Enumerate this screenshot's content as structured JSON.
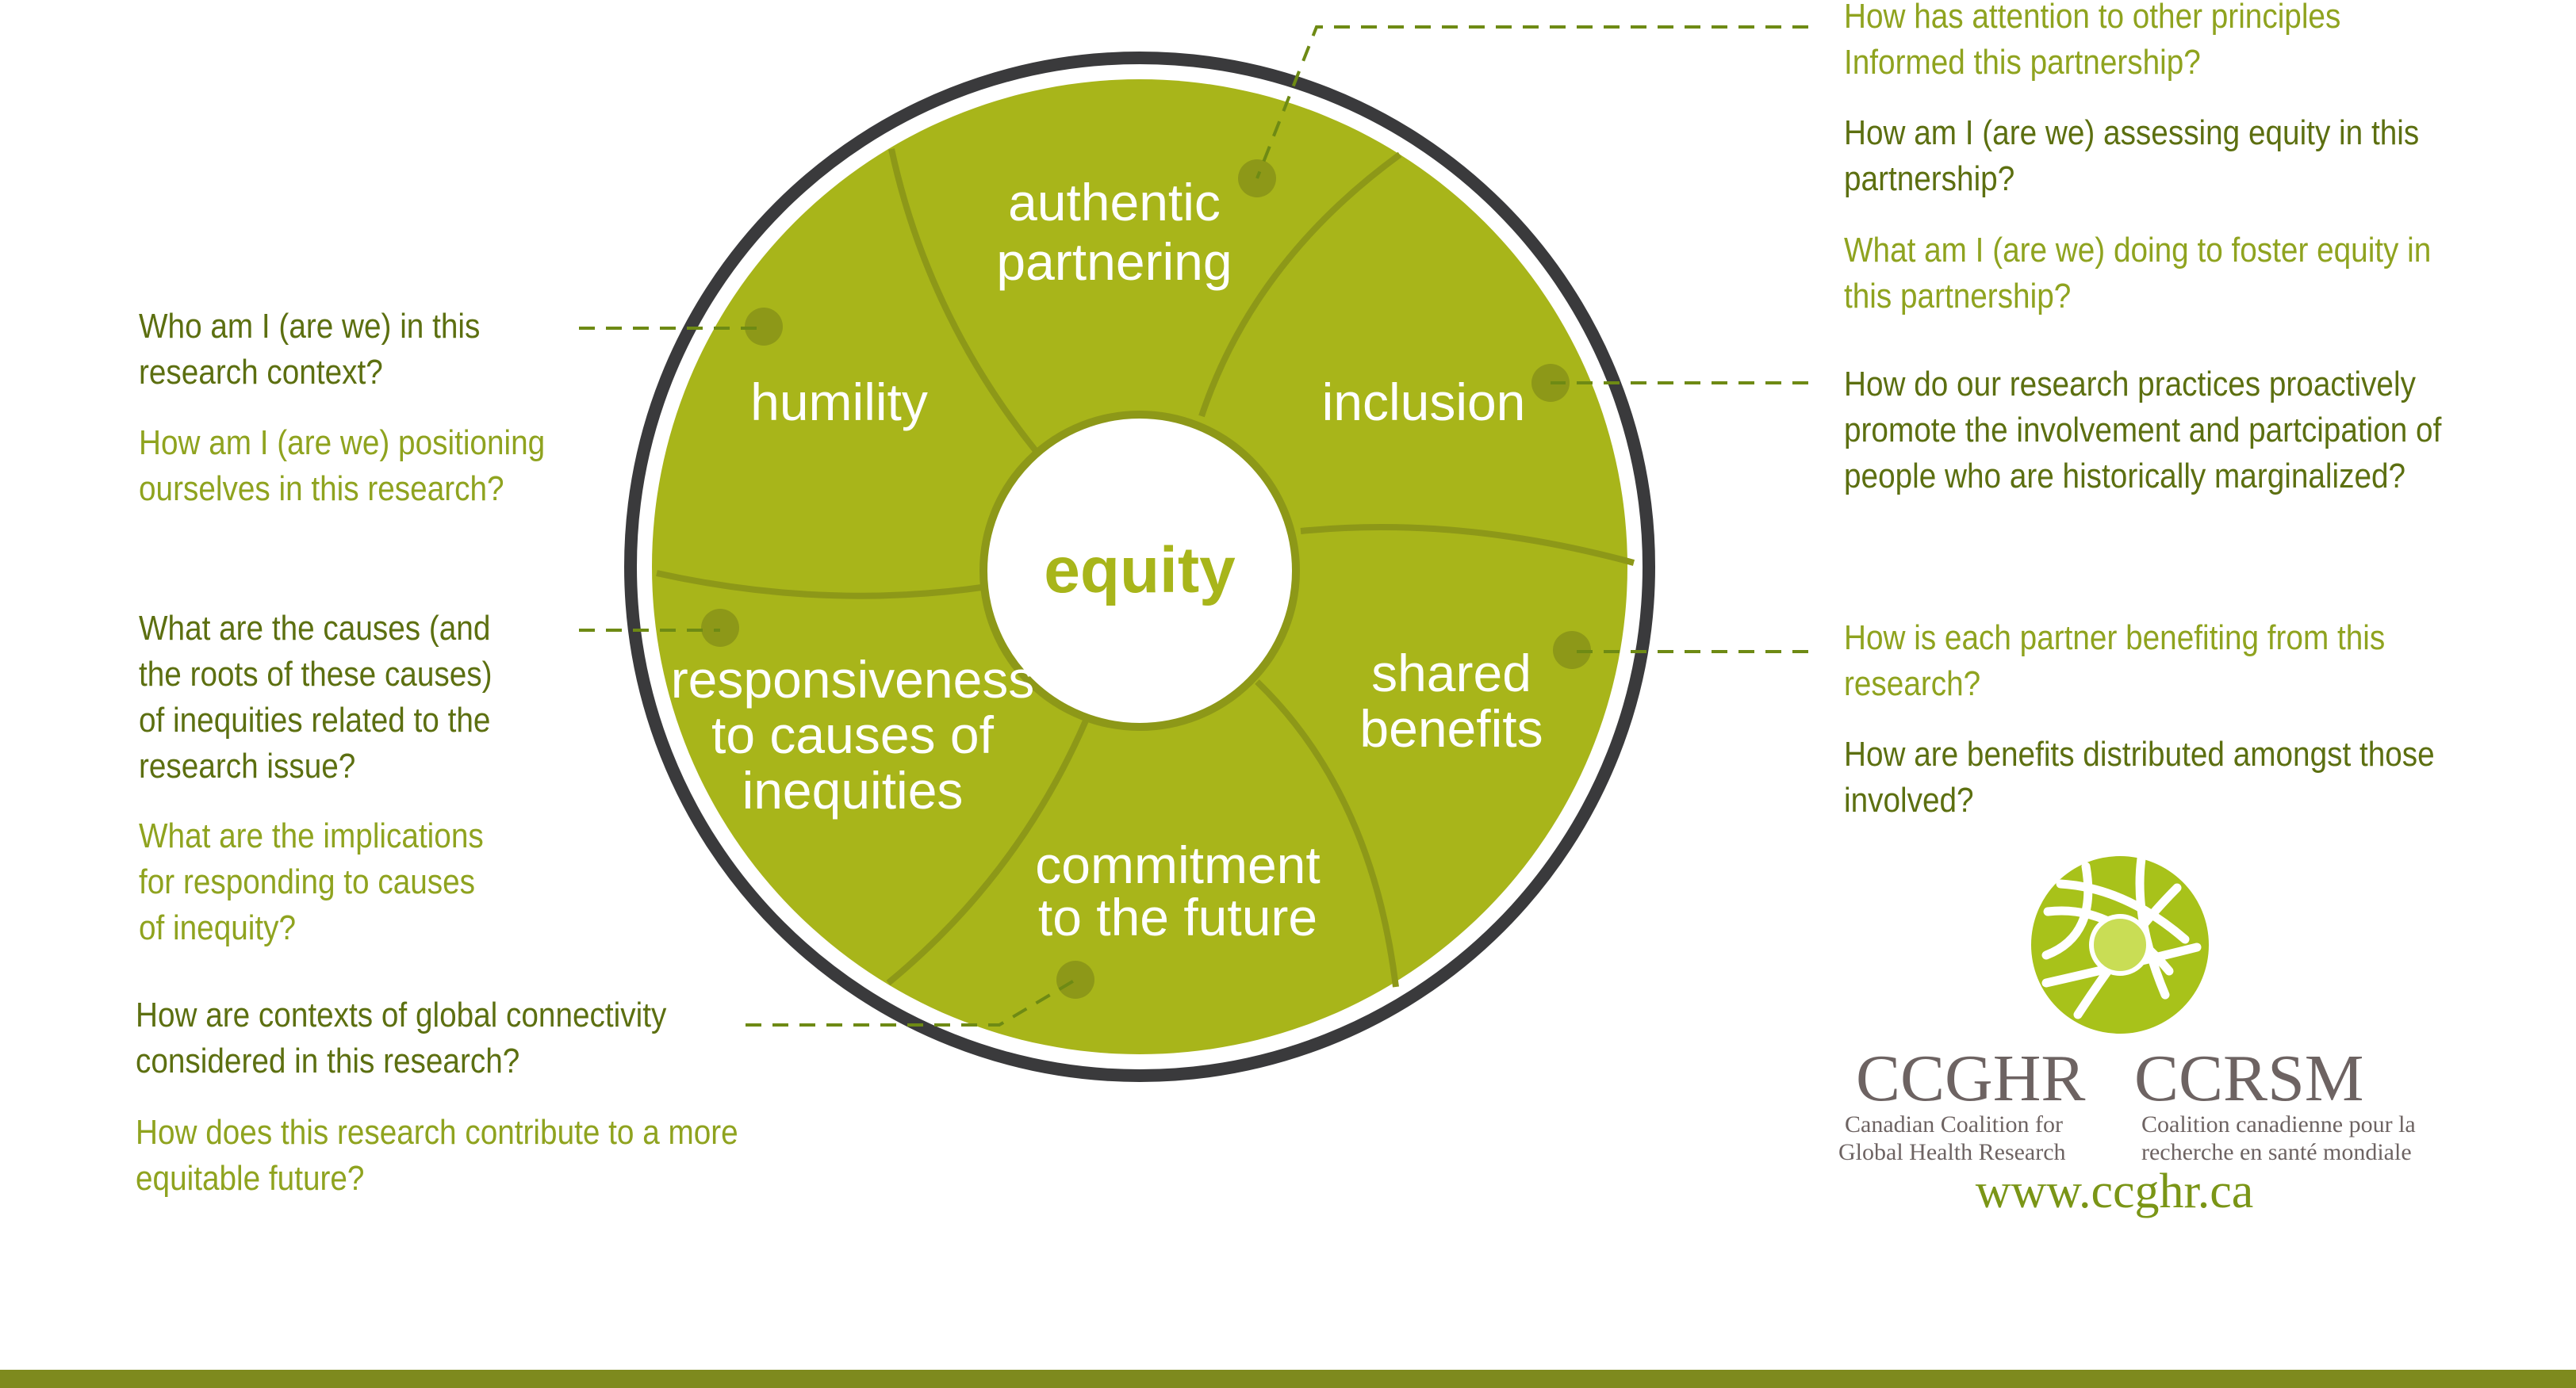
{
  "colors": {
    "wheel_fill": "#a8b51a",
    "wheel_divider": "#8d9818",
    "ring_outer": "#3a3a3c",
    "dark_text": "#5c6f10",
    "light_text": "#8fa31f",
    "dash": "#6e8a14",
    "footer_bar": "#7e8a1e",
    "logo_text": "#6d6362"
  },
  "center": {
    "label": "equity"
  },
  "segments": {
    "authentic_partnering": [
      "authentic",
      "partnering"
    ],
    "inclusion": [
      "inclusion"
    ],
    "shared_benefits": [
      "shared",
      "benefits"
    ],
    "commitment_future": [
      "commitment",
      "to the future"
    ],
    "responsiveness": [
      "responsiveness",
      "to causes of",
      "inequities"
    ],
    "humility": [
      "humility"
    ]
  },
  "questions": {
    "authentic_1": [
      "How has attention to other principles",
      "Informed this partnership?"
    ],
    "authentic_2": [
      "How am I (are we) assessing equity in this",
      "partnership?"
    ],
    "authentic_3": [
      "What am I (are we) doing to foster equity in",
      "this partnership?"
    ],
    "inclusion_1": [
      "How do our research practices proactively",
      "promote the involvement and partcipation of",
      "people who are historically marginalized?"
    ],
    "shared_1": [
      "How is each partner benefiting from this",
      "research?"
    ],
    "shared_2": [
      "How are benefits distributed amongst those",
      "involved?"
    ],
    "humility_1": [
      "Who am I (are we) in this",
      "research context?"
    ],
    "humility_2": [
      "How am I (are we) positioning",
      "ourselves in this research?"
    ],
    "responsiveness_1": [
      "What are the causes (and",
      "the roots of these causes)",
      "of inequities related to the",
      "research issue?"
    ],
    "responsiveness_2": [
      "What are the implications",
      "for responding to causes",
      "of inequity?"
    ],
    "commitment_1": [
      "How are contexts of global connectivity",
      "considered in this research?"
    ],
    "commitment_2": [
      "How does this research contribute to a more",
      "equitable future?"
    ]
  },
  "logo": {
    "abbr_en": "CCGHR",
    "abbr_fr": "CCRSM",
    "name_en": [
      "Canadian Coalition for",
      "Global Health Research"
    ],
    "name_fr": [
      "Coalition canadienne pour la",
      "recherche en santé mondiale"
    ],
    "url": "www.ccghr.ca",
    "icon": "ccghr-swirl-logo"
  }
}
